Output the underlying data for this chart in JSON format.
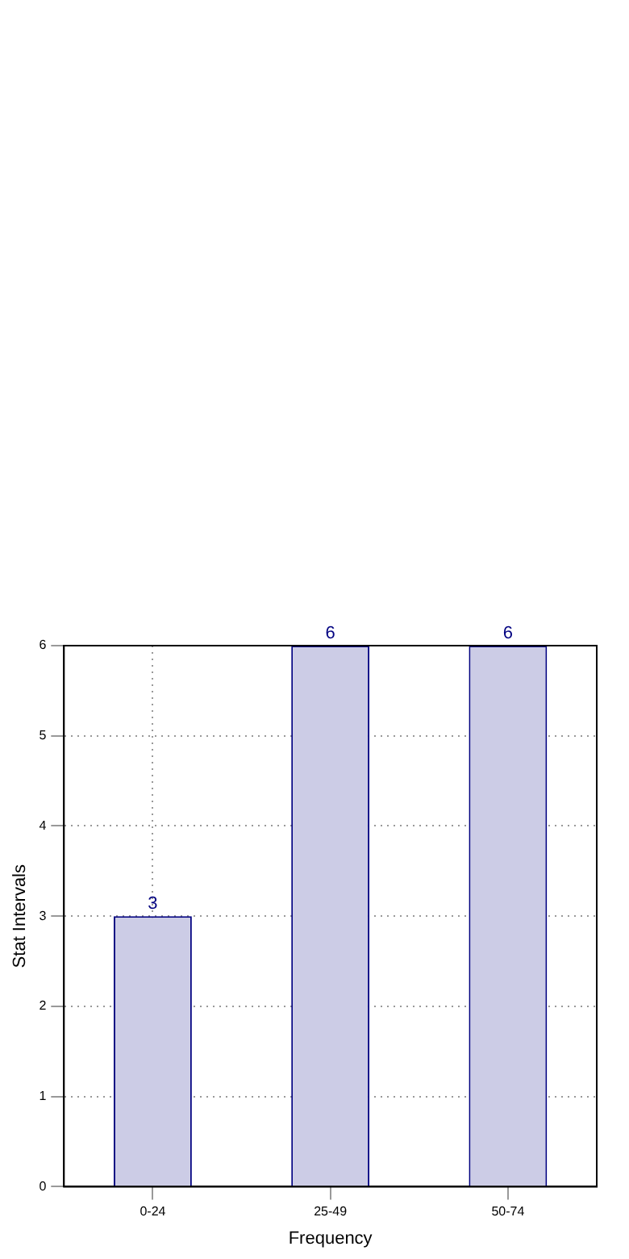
{
  "chart_data": {
    "type": "bar",
    "xlabel": "Frequency",
    "ylabel": "Stat Intervals",
    "categories": [
      "0-24",
      "25-49",
      "50-74"
    ],
    "values": [
      3,
      6,
      6
    ],
    "color": "#cccce6",
    "ylim": [
      0,
      6
    ],
    "yticks": [
      0,
      1,
      2,
      3,
      4,
      5,
      6
    ],
    "grid": true,
    "data_labels": true,
    "legend": false
  }
}
